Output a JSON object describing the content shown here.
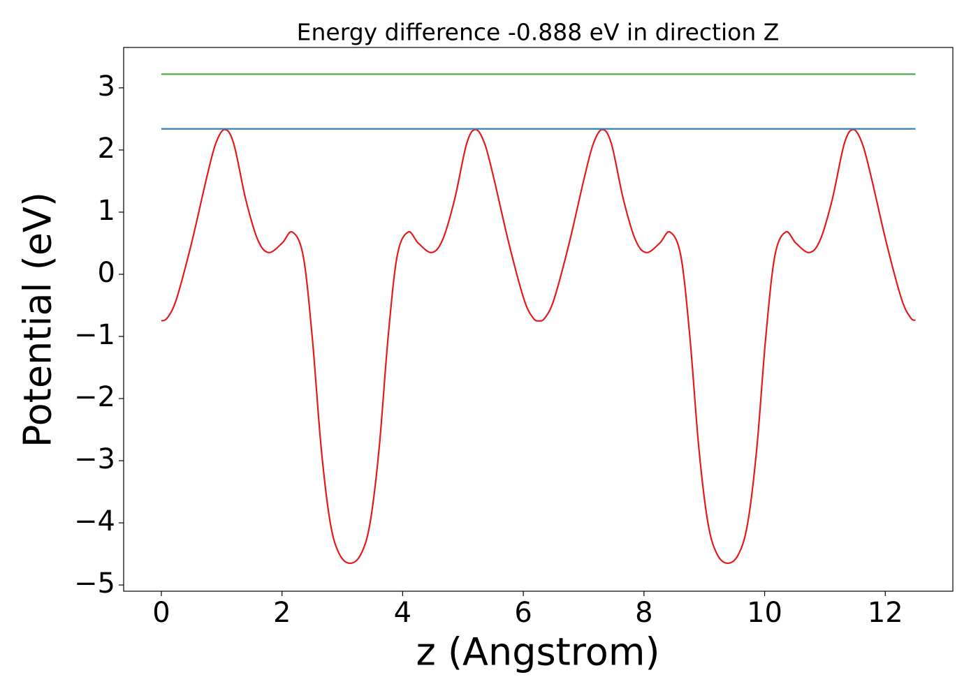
{
  "chart_data": {
    "type": "line",
    "title": "Energy difference -0.888 eV in direction Z",
    "x_label": "z (Angstrom)",
    "y_label": "Potential (eV)",
    "xlim": [
      -0.625,
      13.12
    ],
    "ylim": [
      -5.1,
      3.65
    ],
    "xticks": [
      0,
      2,
      4,
      6,
      8,
      10,
      12
    ],
    "yticks": [
      {
        "value": -5,
        "label": "−5"
      },
      {
        "value": -4,
        "label": "−4"
      },
      {
        "value": -3,
        "label": "−3"
      },
      {
        "value": -2,
        "label": "−2"
      },
      {
        "value": -1,
        "label": "−1"
      },
      0,
      1,
      2,
      3
    ],
    "grid": false,
    "series": [
      {
        "color": "#e41a1c",
        "x": [
          0,
          0.1,
          0.25,
          0.5,
          0.75,
          0.9,
          1.05,
          1.2,
          1.4,
          1.6,
          1.78,
          2.0,
          2.17,
          2.35,
          2.5,
          2.65,
          2.8,
          2.95,
          3.13,
          3.31,
          3.46,
          3.61,
          3.76,
          3.91,
          4.09,
          4.26,
          4.48,
          4.66,
          4.86,
          5.06,
          5.21,
          5.36,
          5.51,
          5.76,
          6.01,
          6.16,
          6.26,
          6.36,
          6.51,
          6.76,
          7.01,
          7.16,
          7.31,
          7.46,
          7.66,
          7.86,
          8.04,
          8.26,
          8.43,
          8.61,
          8.76,
          8.91,
          9.06,
          9.21,
          9.39,
          9.57,
          9.72,
          9.87,
          10.02,
          10.17,
          10.35,
          10.52,
          10.74,
          10.92,
          11.12,
          11.32,
          11.47,
          11.62,
          11.77,
          12.02,
          12.27,
          12.42,
          12.5
        ],
        "values": [
          -0.75,
          -0.7,
          -0.4,
          0.5,
          1.55,
          2.1,
          2.33,
          2.1,
          1.2,
          0.55,
          0.35,
          0.5,
          0.68,
          0.3,
          -1.0,
          -2.8,
          -4.0,
          -4.5,
          -4.65,
          -4.5,
          -4.0,
          -2.8,
          -1.0,
          0.3,
          0.68,
          0.5,
          0.35,
          0.55,
          1.2,
          2.1,
          2.33,
          2.1,
          1.55,
          0.5,
          -0.4,
          -0.7,
          -0.75,
          -0.7,
          -0.4,
          0.5,
          1.55,
          2.1,
          2.33,
          2.1,
          1.2,
          0.55,
          0.35,
          0.5,
          0.68,
          0.3,
          -1.0,
          -2.8,
          -4.0,
          -4.5,
          -4.65,
          -4.5,
          -4.0,
          -2.8,
          -1.0,
          0.3,
          0.68,
          0.5,
          0.35,
          0.55,
          1.2,
          2.1,
          2.33,
          2.1,
          1.55,
          0.5,
          -0.4,
          -0.7,
          -0.74
        ]
      },
      {
        "color": "#377eb8",
        "x": [
          0,
          12.5
        ],
        "values": [
          2.34,
          2.34
        ]
      },
      {
        "color": "#4daf4a",
        "x": [
          0,
          12.5
        ],
        "values": [
          3.22,
          3.22
        ]
      }
    ]
  }
}
